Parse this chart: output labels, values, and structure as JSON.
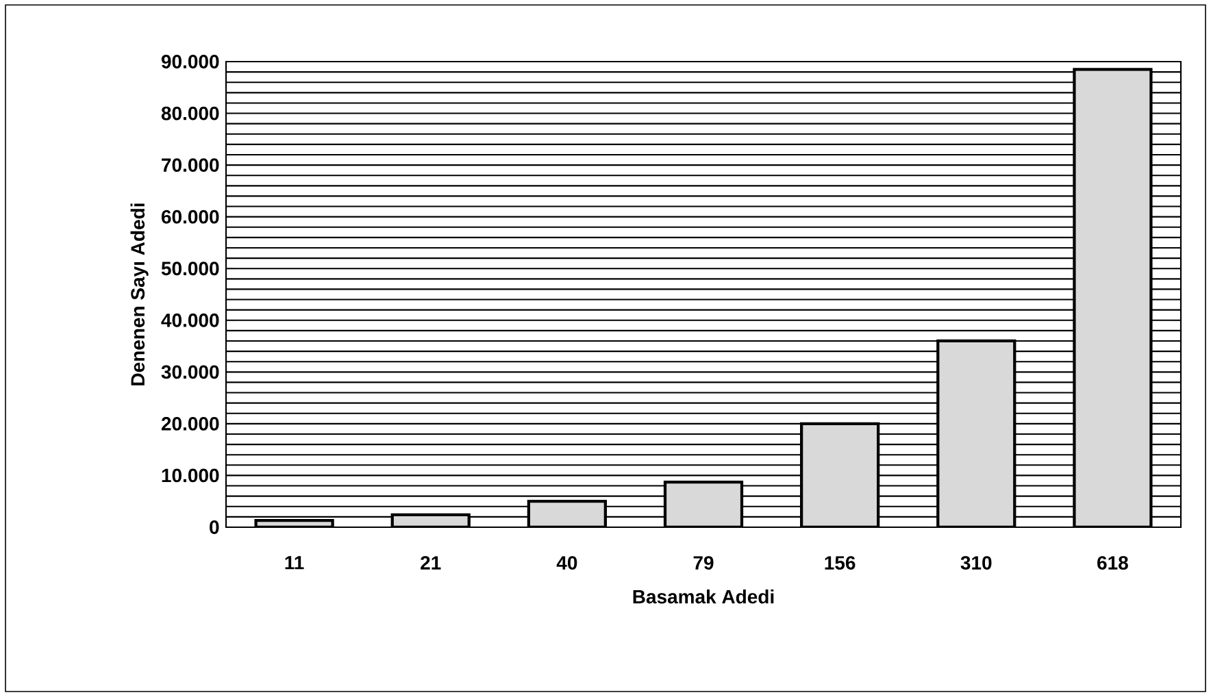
{
  "chart_data": {
    "type": "bar",
    "xlabel": "Basamak Adedi",
    "ylabel": "Denenen Sayı Adedi",
    "categories": [
      "11",
      "21",
      "40",
      "79",
      "156",
      "310",
      "618"
    ],
    "values": [
      1300,
      2400,
      5000,
      8700,
      20000,
      36000,
      88500
    ],
    "color": "#d9d9d9",
    "ylim": [
      0,
      90000
    ],
    "yticks": [
      {
        "value": 0,
        "label": "0"
      },
      {
        "value": 10000,
        "label": "10.000"
      },
      {
        "value": 20000,
        "label": "20.000"
      },
      {
        "value": 30000,
        "label": "30.000"
      },
      {
        "value": 40000,
        "label": "40.000"
      },
      {
        "value": 50000,
        "label": "50.000"
      },
      {
        "value": 60000,
        "label": "60.000"
      },
      {
        "value": 70000,
        "label": "70.000"
      },
      {
        "value": 80000,
        "label": "80.000"
      },
      {
        "value": 90000,
        "label": "90.000"
      }
    ],
    "grid": "y"
  }
}
